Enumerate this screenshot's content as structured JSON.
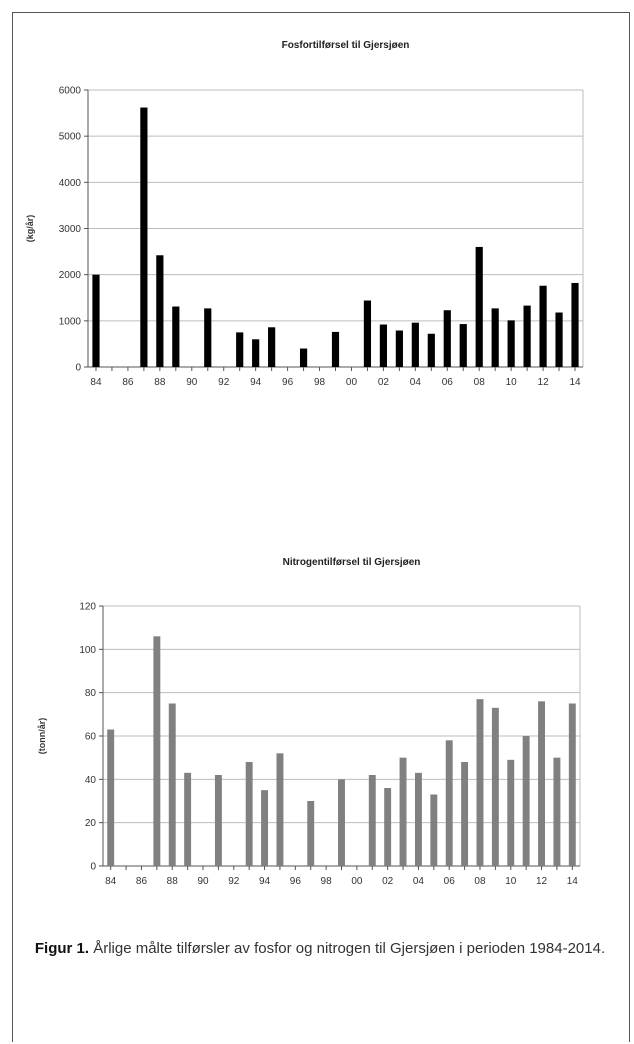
{
  "chart_data": [
    {
      "type": "bar",
      "title": "Fosfortilførsel til Gjersjøen",
      "ylabel": "(kg/år)",
      "xlabel": "",
      "ylim": [
        0,
        6000
      ],
      "yticks": [
        0,
        1000,
        2000,
        3000,
        4000,
        5000,
        6000
      ],
      "xtick_labels": [
        "84",
        "86",
        "88",
        "90",
        "92",
        "94",
        "96",
        "98",
        "00",
        "02",
        "04",
        "06",
        "08",
        "10",
        "12",
        "14"
      ],
      "bar_color": "#000000",
      "grid": true,
      "categories": [
        "84",
        "85",
        "86",
        "87",
        "88",
        "89",
        "90",
        "91",
        "92",
        "93",
        "94",
        "95",
        "96",
        "97",
        "98",
        "99",
        "00",
        "01",
        "02",
        "03",
        "04",
        "05",
        "06",
        "07",
        "08",
        "09",
        "10",
        "11",
        "12",
        "13",
        "14"
      ],
      "values": [
        2000,
        0,
        0,
        5620,
        2420,
        1310,
        0,
        1270,
        0,
        750,
        600,
        860,
        0,
        400,
        0,
        760,
        0,
        1440,
        920,
        790,
        960,
        720,
        1230,
        930,
        2600,
        1270,
        1010,
        1330,
        1760,
        1180,
        1820
      ]
    },
    {
      "type": "bar",
      "title": "Nitrogentilførsel til Gjersjøen",
      "ylabel": "(tonn/år)",
      "xlabel": "",
      "ylim": [
        0,
        120
      ],
      "yticks": [
        0,
        20,
        40,
        60,
        80,
        100,
        120
      ],
      "xtick_labels": [
        "84",
        "86",
        "88",
        "90",
        "92",
        "94",
        "96",
        "98",
        "00",
        "02",
        "04",
        "06",
        "08",
        "10",
        "12",
        "14"
      ],
      "bar_color": "#808080",
      "grid": true,
      "categories": [
        "84",
        "85",
        "86",
        "87",
        "88",
        "89",
        "90",
        "91",
        "92",
        "93",
        "94",
        "95",
        "96",
        "97",
        "98",
        "99",
        "00",
        "01",
        "02",
        "03",
        "04",
        "05",
        "06",
        "07",
        "08",
        "09",
        "10",
        "11",
        "12",
        "13",
        "14"
      ],
      "values": [
        63,
        0,
        0,
        106,
        75,
        43,
        0,
        42,
        0,
        48,
        35,
        52,
        0,
        30,
        0,
        40,
        0,
        42,
        36,
        50,
        43,
        33,
        58,
        48,
        77,
        73,
        49,
        60,
        76,
        50,
        75
      ]
    }
  ],
  "caption": {
    "label": "Figur 1.",
    "text": " Årlige målte tilførsler av fosfor og nitrogen til Gjersjøen i perioden 1984-2014."
  }
}
